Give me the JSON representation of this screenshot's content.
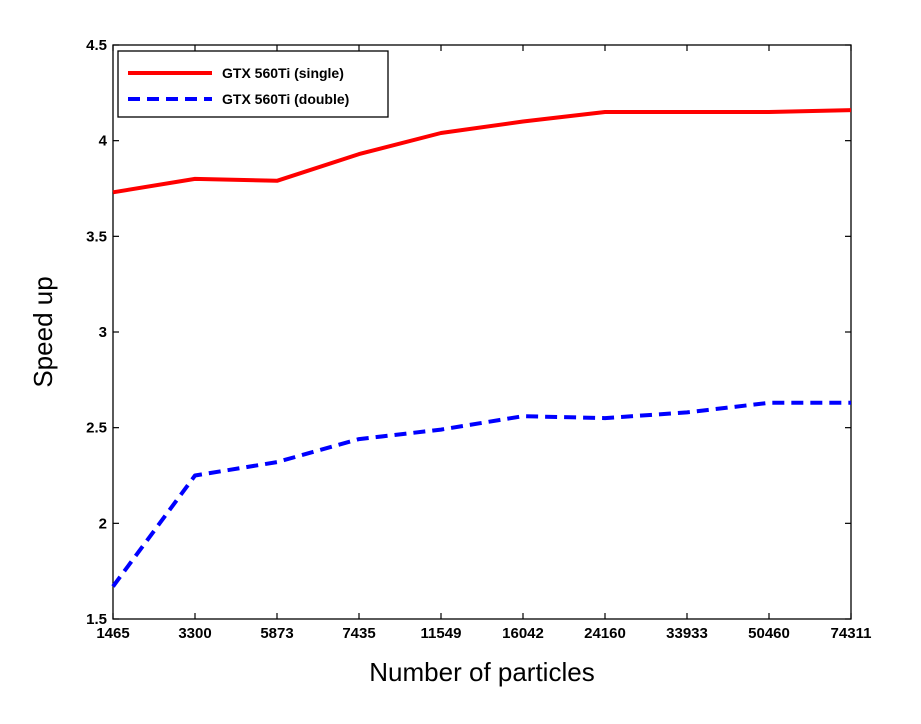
{
  "chart_data": {
    "type": "line",
    "title": "",
    "xlabel": "Number of particles",
    "ylabel": "Speed up",
    "categories": [
      "1465",
      "3300",
      "5873",
      "7435",
      "11549",
      "16042",
      "24160",
      "33933",
      "50460",
      "74311"
    ],
    "ylim": [
      1.5,
      4.5
    ],
    "yticks": [
      "1.5",
      "2",
      "2.5",
      "3",
      "3.5",
      "4",
      "4.5"
    ],
    "grid": false,
    "legend_position": "top-left",
    "series": [
      {
        "name": "GTX 560Ti (single)",
        "color": "#ff0000",
        "style": "solid",
        "values": [
          3.73,
          3.8,
          3.79,
          3.93,
          4.04,
          4.1,
          4.15,
          4.15,
          4.15,
          4.16
        ]
      },
      {
        "name": "GTX 560Ti (double)",
        "color": "#0000ff",
        "style": "dashed",
        "values": [
          1.67,
          2.25,
          2.32,
          2.44,
          2.49,
          2.56,
          2.55,
          2.58,
          2.63,
          2.63
        ]
      }
    ]
  }
}
